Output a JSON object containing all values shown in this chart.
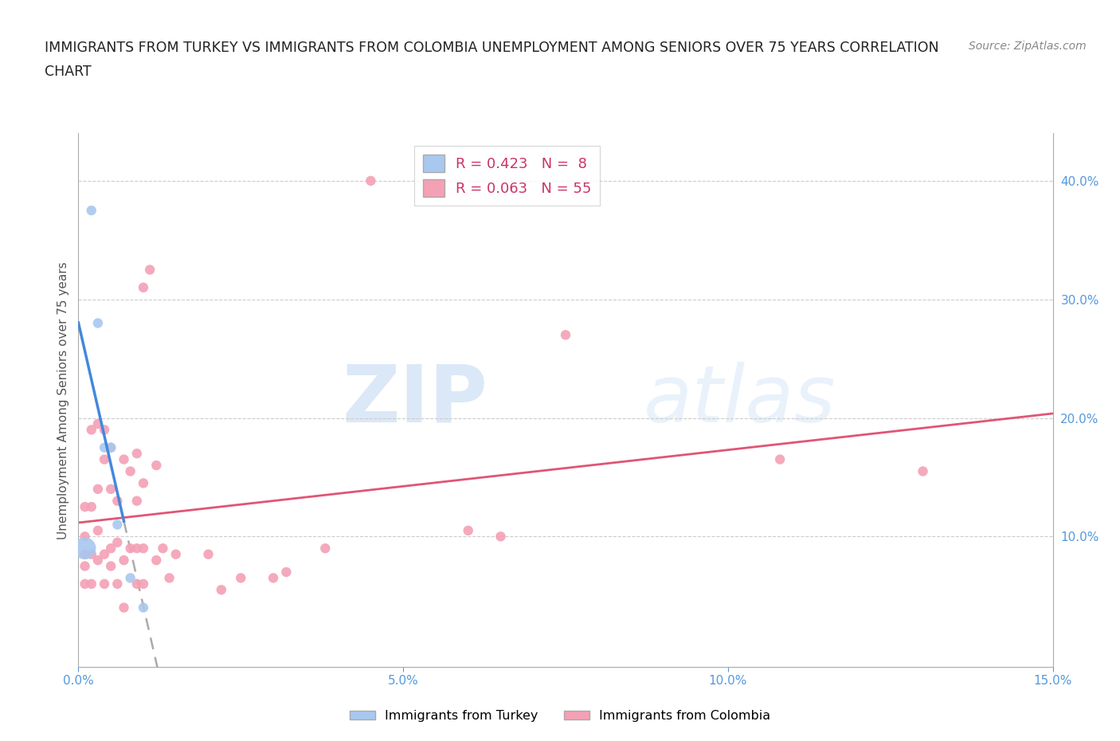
{
  "title_line1": "IMMIGRANTS FROM TURKEY VS IMMIGRANTS FROM COLOMBIA UNEMPLOYMENT AMONG SENIORS OVER 75 YEARS CORRELATION",
  "title_line2": "CHART",
  "source": "Source: ZipAtlas.com",
  "ylabel": "Unemployment Among Seniors over 75 years",
  "xlim": [
    0,
    0.15
  ],
  "ylim": [
    -0.01,
    0.44
  ],
  "xticks": [
    0.0,
    0.05,
    0.1,
    0.15
  ],
  "xtick_labels": [
    "0.0%",
    "5.0%",
    "10.0%",
    "15.0%"
  ],
  "yticks_right": [
    0.1,
    0.2,
    0.3,
    0.4
  ],
  "ytick_labels_right": [
    "10.0%",
    "20.0%",
    "30.0%",
    "40.0%"
  ],
  "turkey_color": "#a8c8f0",
  "colombia_color": "#f4a0b5",
  "turkey_line_color": "#4488dd",
  "colombia_line_color": "#e05575",
  "turkey_R": 0.423,
  "turkey_N": 8,
  "colombia_R": 0.063,
  "colombia_N": 55,
  "turkey_x": [
    0.001,
    0.002,
    0.003,
    0.004,
    0.005,
    0.006,
    0.008,
    0.01
  ],
  "turkey_y": [
    0.09,
    0.375,
    0.28,
    0.175,
    0.175,
    0.11,
    0.065,
    0.04
  ],
  "turkey_sizes": [
    400,
    80,
    80,
    80,
    80,
    80,
    80,
    80
  ],
  "colombia_x": [
    0.001,
    0.001,
    0.001,
    0.001,
    0.001,
    0.002,
    0.002,
    0.002,
    0.002,
    0.003,
    0.003,
    0.003,
    0.003,
    0.004,
    0.004,
    0.004,
    0.004,
    0.005,
    0.005,
    0.005,
    0.005,
    0.006,
    0.006,
    0.006,
    0.007,
    0.007,
    0.007,
    0.008,
    0.008,
    0.009,
    0.009,
    0.009,
    0.009,
    0.01,
    0.01,
    0.01,
    0.01,
    0.011,
    0.012,
    0.012,
    0.013,
    0.014,
    0.015,
    0.02,
    0.022,
    0.025,
    0.03,
    0.032,
    0.038,
    0.045,
    0.06,
    0.065,
    0.075,
    0.108,
    0.13
  ],
  "colombia_y": [
    0.06,
    0.075,
    0.085,
    0.1,
    0.125,
    0.06,
    0.085,
    0.19,
    0.125,
    0.08,
    0.105,
    0.14,
    0.195,
    0.06,
    0.085,
    0.165,
    0.19,
    0.075,
    0.09,
    0.14,
    0.175,
    0.06,
    0.095,
    0.13,
    0.04,
    0.08,
    0.165,
    0.09,
    0.155,
    0.06,
    0.09,
    0.13,
    0.17,
    0.06,
    0.09,
    0.145,
    0.31,
    0.325,
    0.08,
    0.16,
    0.09,
    0.065,
    0.085,
    0.085,
    0.055,
    0.065,
    0.065,
    0.07,
    0.09,
    0.4,
    0.105,
    0.1,
    0.27,
    0.165,
    0.155
  ],
  "watermark_zip": "ZIP",
  "watermark_atlas": "atlas",
  "background_color": "#ffffff",
  "grid_color": "#cccccc",
  "title_color": "#222222",
  "tick_color": "#5599dd",
  "ylabel_color": "#555555",
  "legend_text_color": "#222222",
  "legend_r_color": "#cc3366",
  "bottom_legend_color": "#555555"
}
